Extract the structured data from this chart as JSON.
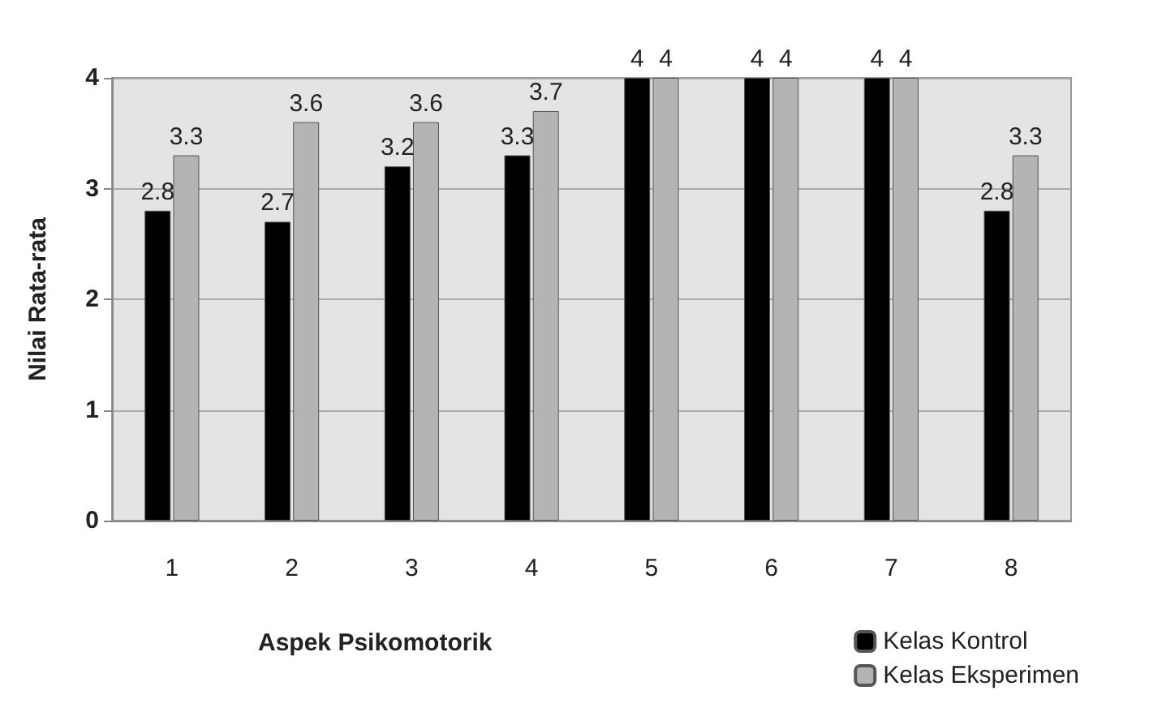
{
  "chart_data": {
    "type": "bar",
    "xlabel": "Aspek Psikomotorik",
    "ylabel": "Nilai Rata-rata",
    "categories": [
      "1",
      "2",
      "3",
      "4",
      "5",
      "6",
      "7",
      "8"
    ],
    "series": [
      {
        "name": "Kelas Kontrol",
        "color": "#000000",
        "values": [
          2.8,
          2.7,
          3.2,
          3.3,
          4,
          4,
          4,
          2.8
        ]
      },
      {
        "name": "Kelas Eksperimen",
        "color": "#b4b4b4",
        "values": [
          3.3,
          3.6,
          3.6,
          3.7,
          4,
          4,
          4,
          3.3
        ]
      }
    ],
    "ylim": [
      0,
      4
    ],
    "yticks": [
      0,
      1,
      2,
      3,
      4
    ],
    "grid": "y",
    "legend": "bottom right",
    "data_labels": true
  }
}
